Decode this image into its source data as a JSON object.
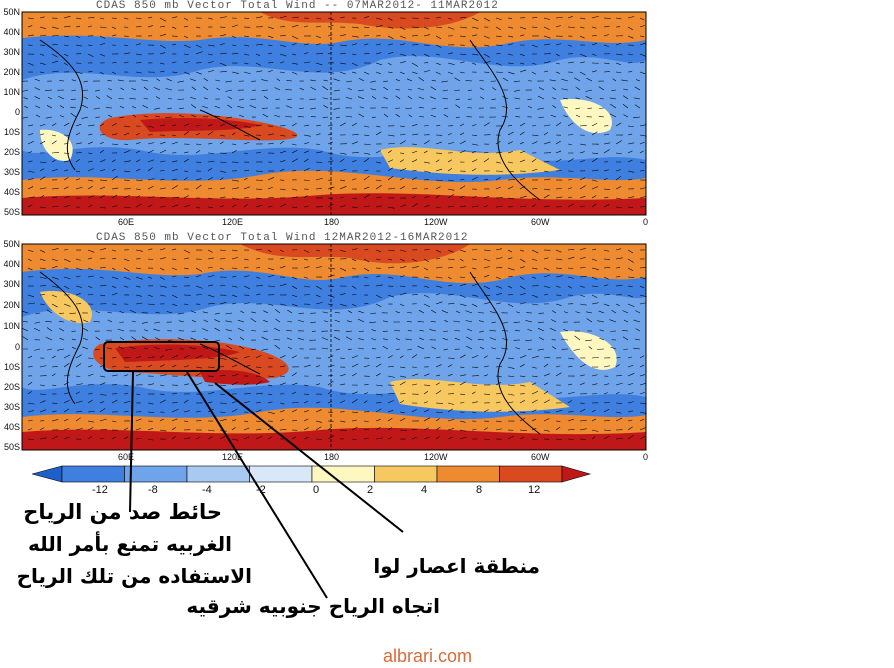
{
  "panels": [
    {
      "title": "CDAS 850 mb Vector Total Wind -- 07MAR2012- 11MAR2012"
    },
    {
      "title": "CDAS 850 mb Vector Total Wind 12MAR2012-16MAR2012"
    }
  ],
  "lat_labels": [
    "50N",
    "40N",
    "30N",
    "20N",
    "10N",
    "0",
    "10S",
    "20S",
    "30S",
    "40S",
    "50S"
  ],
  "lon_labels": [
    "60E",
    "120E",
    "180",
    "120W",
    "60W",
    "0"
  ],
  "colorbar": {
    "ticks": [
      "-12",
      "-8",
      "-4",
      "-2",
      "0",
      "2",
      "4",
      "8",
      "12"
    ],
    "colors": [
      "#1f5fc8",
      "#3f7fe0",
      "#6fa4ea",
      "#a8c9f2",
      "#d9e8f8",
      "#fff7c0",
      "#f7c860",
      "#ee8a30",
      "#d94a20",
      "#c01818"
    ]
  },
  "annotations": {
    "wall_lines": [
      "حائط صد من الرياح",
      "الغربيه تمنع بأمر الله",
      "الاستفاده من تلك الرياح"
    ],
    "convergence": "منطقة اعصار لوا",
    "wind_direction": "اتجاه الرياح جنوبيه شرقيه"
  },
  "footer": {
    "site": "albrari.com"
  }
}
